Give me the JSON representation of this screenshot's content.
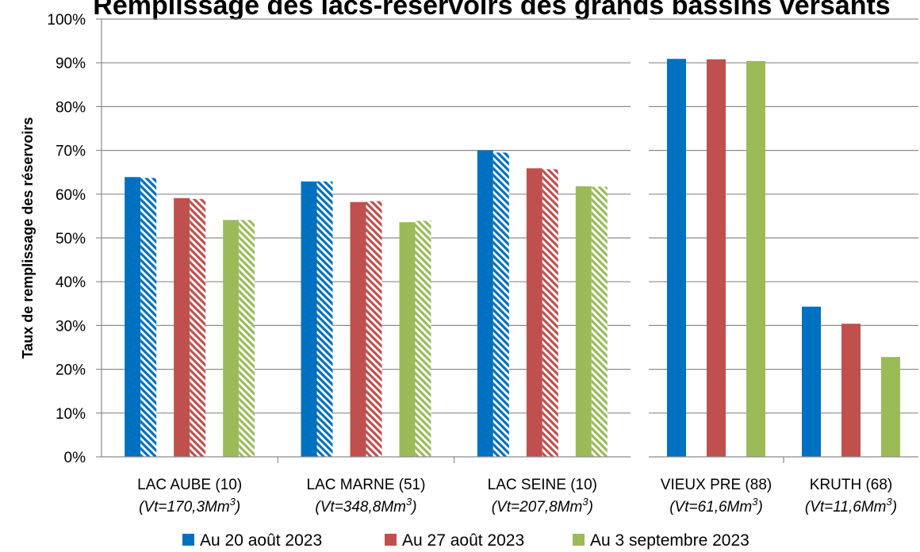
{
  "chart_data": {
    "type": "bar",
    "title": "Remplissage des lacs-réservoirs des grands bassins versants",
    "ylabel": "Taux de remplissage des réservoirs",
    "ylim": [
      0,
      100
    ],
    "yticks": [
      "0%",
      "10%",
      "20%",
      "30%",
      "40%",
      "50%",
      "60%",
      "70%",
      "80%",
      "90%",
      "100%"
    ],
    "grid": true,
    "legend_position": "bottom",
    "categories": [
      {
        "name": "LAC AUBE (10)",
        "sub_prefix": "(Vt=170,3Mm",
        "sub_sup": "3",
        "sub_suffix": ")",
        "hatched": true
      },
      {
        "name": "LAC MARNE (51)",
        "sub_prefix": "(Vt=348,8Mm",
        "sub_sup": "3",
        "sub_suffix": ")",
        "hatched": true
      },
      {
        "name": "LAC SEINE (10)",
        "sub_prefix": "(Vt=207,8Mm",
        "sub_sup": "3",
        "sub_suffix": ")",
        "hatched": true
      },
      {
        "name": "VIEUX PRE (88)",
        "sub_prefix": "(Vt=61,6Mm",
        "sub_sup": "3",
        "sub_suffix": ")",
        "hatched": false
      },
      {
        "name": "KRUTH (68)",
        "sub_prefix": "(Vt=11,6Mm",
        "sub_sup": "3",
        "sub_suffix": ")",
        "hatched": false
      }
    ],
    "series": [
      {
        "name": "Au 20 août 2023",
        "color": "#0070C0",
        "values": [
          63.9,
          62.9,
          70.0,
          90.9,
          34.3
        ],
        "hatched_values": [
          63.7,
          62.9,
          69.5
        ]
      },
      {
        "name": "Au 27 août 2023",
        "color": "#C0504D",
        "values": [
          59.1,
          58.2,
          65.9,
          90.8,
          30.4
        ],
        "hatched_values": [
          58.9,
          58.4,
          65.7
        ]
      },
      {
        "name": "Au 3 septembre 2023",
        "color": "#9BBB59",
        "values": [
          54.1,
          53.6,
          61.8,
          90.4,
          22.8
        ],
        "hatched_values": [
          54.1,
          53.9,
          61.7
        ]
      }
    ]
  }
}
